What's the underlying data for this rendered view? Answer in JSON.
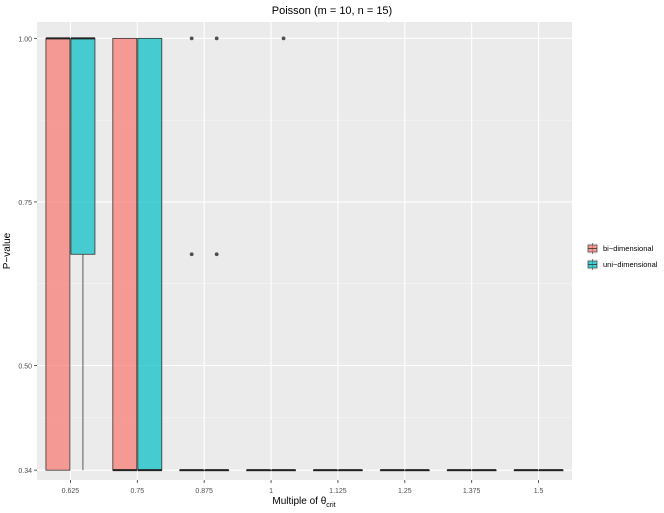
{
  "chart_data": {
    "type": "boxplot",
    "title": "Poisson (m = 10, n = 15)",
    "xlabel_main": "Multiple of θ",
    "xlabel_sub": "crit",
    "ylabel": "P−value",
    "ylim": [
      0.325,
      1.025
    ],
    "y_ticks": [
      0.34,
      0.5,
      0.75,
      1.0
    ],
    "y_tick_labels": [
      "0.34",
      "0.50",
      "0.75",
      "1.00"
    ],
    "categories": [
      "0.625",
      "0.75",
      "0.875",
      "1",
      "1.125",
      "1.25",
      "1.375",
      "1.5"
    ],
    "grid": true,
    "legend_position": "right",
    "series": [
      {
        "name": "bi−dimensional",
        "color": "#F8766D",
        "boxes": [
          {
            "low": 0.34,
            "q1": 0.34,
            "median": 1.0,
            "q3": 1.0,
            "high": 1.0,
            "outliers": []
          },
          {
            "low": 0.34,
            "q1": 0.34,
            "median": 0.34,
            "q3": 1.0,
            "high": 1.0,
            "outliers": []
          },
          {
            "low": 0.34,
            "q1": 0.34,
            "median": 0.34,
            "q3": 0.34,
            "high": 0.34,
            "outliers": [
              1.0,
              0.67
            ]
          },
          {
            "low": 0.34,
            "q1": 0.34,
            "median": 0.34,
            "q3": 0.34,
            "high": 0.34,
            "outliers": []
          },
          {
            "low": 0.34,
            "q1": 0.34,
            "median": 0.34,
            "q3": 0.34,
            "high": 0.34,
            "outliers": []
          },
          {
            "low": 0.34,
            "q1": 0.34,
            "median": 0.34,
            "q3": 0.34,
            "high": 0.34,
            "outliers": []
          },
          {
            "low": 0.34,
            "q1": 0.34,
            "median": 0.34,
            "q3": 0.34,
            "high": 0.34,
            "outliers": []
          },
          {
            "low": 0.34,
            "q1": 0.34,
            "median": 0.34,
            "q3": 0.34,
            "high": 0.34,
            "outliers": []
          }
        ]
      },
      {
        "name": "uni−dimensional",
        "color": "#00BFC4",
        "boxes": [
          {
            "low": 0.34,
            "q1": 0.67,
            "median": 1.0,
            "q3": 1.0,
            "high": 1.0,
            "outliers": []
          },
          {
            "low": 0.34,
            "q1": 0.34,
            "median": 0.34,
            "q3": 1.0,
            "high": 1.0,
            "outliers": []
          },
          {
            "low": 0.34,
            "q1": 0.34,
            "median": 0.34,
            "q3": 0.34,
            "high": 0.34,
            "outliers": [
              1.0,
              0.67
            ]
          },
          {
            "low": 0.34,
            "q1": 0.34,
            "median": 0.34,
            "q3": 0.34,
            "high": 0.34,
            "outliers": [
              1.0
            ]
          },
          {
            "low": 0.34,
            "q1": 0.34,
            "median": 0.34,
            "q3": 0.34,
            "high": 0.34,
            "outliers": []
          },
          {
            "low": 0.34,
            "q1": 0.34,
            "median": 0.34,
            "q3": 0.34,
            "high": 0.34,
            "outliers": []
          },
          {
            "low": 0.34,
            "q1": 0.34,
            "median": 0.34,
            "q3": 0.34,
            "high": 0.34,
            "outliers": []
          },
          {
            "low": 0.34,
            "q1": 0.34,
            "median": 0.34,
            "q3": 0.34,
            "high": 0.34,
            "outliers": []
          }
        ]
      }
    ]
  }
}
